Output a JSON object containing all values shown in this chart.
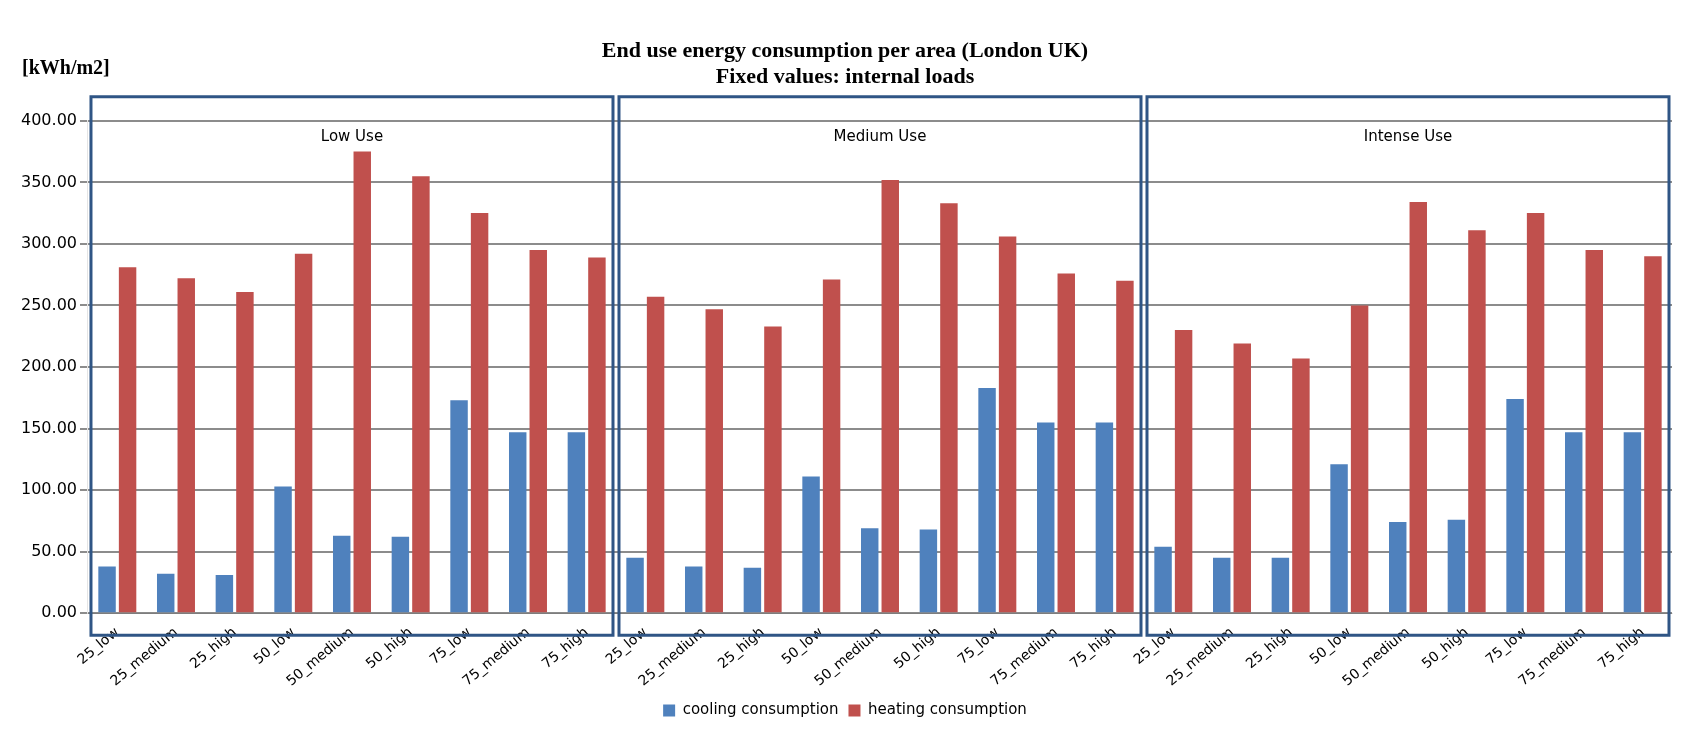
{
  "chart_data": {
    "type": "bar",
    "title": "End use energy consumption per area (London UK)",
    "subtitle": "Fixed values: internal loads",
    "ylabel": "[kWh/m2]",
    "categories": [
      "25_low",
      "25_medium",
      "25_high",
      "50_low",
      "50_medium",
      "50_high",
      "75_low",
      "75_medium",
      "75_high",
      "25_low",
      "25_medium",
      "25_high",
      "50_low",
      "50_medium",
      "50_high",
      "75_low",
      "75_medium",
      "75_high",
      "25_low",
      "25_medium",
      "25_high",
      "50_low",
      "50_medium",
      "50_high",
      "75_low",
      "75_medium",
      "75_high"
    ],
    "series": [
      {
        "name": "cooling consumption",
        "color": "#4f81bd",
        "values": [
          38,
          32,
          31,
          103,
          63,
          62,
          173,
          147,
          147,
          45,
          38,
          37,
          111,
          69,
          68,
          183,
          155,
          155,
          54,
          45,
          45,
          121,
          74,
          76,
          174,
          147,
          147
        ]
      },
      {
        "name": "heating consumption",
        "color": "#c0504d",
        "values": [
          281,
          272,
          261,
          292,
          375,
          355,
          325,
          295,
          289,
          257,
          247,
          233,
          271,
          352,
          333,
          306,
          276,
          270,
          230,
          219,
          207,
          250,
          334,
          311,
          325,
          295,
          290
        ]
      }
    ],
    "ylim": [
      0,
      400
    ],
    "yticks": [
      {
        "value": 0,
        "label": "0.00"
      },
      {
        "value": 50,
        "label": "50.00"
      },
      {
        "value": 100,
        "label": "100.00"
      },
      {
        "value": 150,
        "label": "150.00"
      },
      {
        "value": 200,
        "label": "200.00"
      },
      {
        "value": 250,
        "label": "250.00"
      },
      {
        "value": 300,
        "label": "300.00"
      },
      {
        "value": 350,
        "label": "350.00"
      },
      {
        "value": 400,
        "label": "400.00"
      }
    ],
    "grid": "y",
    "legend": "bottom",
    "annotations": [
      "Low Use",
      "Medium Use",
      "Intense Use"
    ]
  }
}
